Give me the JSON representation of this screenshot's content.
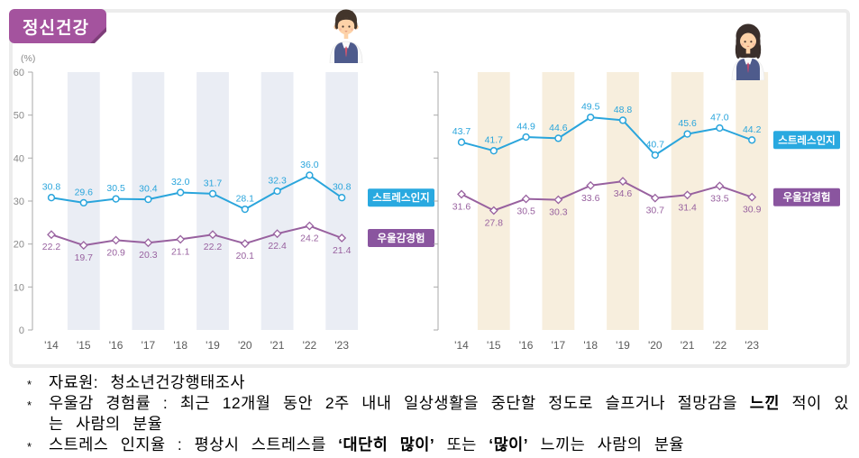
{
  "page": {
    "title_badge": "정신건강"
  },
  "chart_data": [
    {
      "type": "line",
      "group_icon": "boy-student-icon",
      "x": [
        "'14",
        "'15",
        "'16",
        "'17",
        "'18",
        "'19",
        "'20",
        "'21",
        "'22",
        "'23"
      ],
      "ylim": [
        0,
        60
      ],
      "yticks": [
        0,
        10,
        20,
        30,
        40,
        50,
        60
      ],
      "show_ytick_labels": true,
      "unit_label": "(%)",
      "grid": "alternating-year-stripes",
      "stripe_color": "#eaedf4",
      "legend_position": "right-of-last-point",
      "series": [
        {
          "name": "스트레스인지",
          "color": "#2aa5dc",
          "legend_bg": "#29a9e0",
          "marker": "circle",
          "values": [
            30.8,
            29.6,
            30.5,
            30.4,
            32.0,
            31.7,
            28.1,
            32.3,
            36.0,
            30.8
          ],
          "labels": [
            "30.8",
            "29.6",
            "30.5",
            "30.4",
            "32.0",
            "31.7",
            "28.1",
            "32.3",
            "36.0",
            "30.8"
          ]
        },
        {
          "name": "우울감경험",
          "color": "#98619f",
          "legend_bg": "#8a559f",
          "marker": "diamond",
          "values": [
            22.2,
            19.7,
            20.9,
            20.3,
            21.1,
            22.2,
            20.1,
            22.4,
            24.2,
            21.4
          ],
          "labels": [
            "22.2",
            "19.7",
            "20.9",
            "20.3",
            "21.1",
            "22.2",
            "20.1",
            "22.4",
            "24.2",
            "21.4"
          ]
        }
      ]
    },
    {
      "type": "line",
      "group_icon": "girl-student-icon",
      "x": [
        "'14",
        "'15",
        "'16",
        "'17",
        "'18",
        "'19",
        "'20",
        "'21",
        "'22",
        "'23"
      ],
      "ylim": [
        0,
        60
      ],
      "yticks": [
        0,
        10,
        20,
        30,
        40,
        50,
        60
      ],
      "show_ytick_labels": false,
      "unit_label": "",
      "grid": "alternating-year-stripes",
      "stripe_color": "#f7eedd",
      "legend_position": "right-of-last-point",
      "series": [
        {
          "name": "스트레스인지",
          "color": "#2aa5dc",
          "legend_bg": "#29a9e0",
          "marker": "circle",
          "values": [
            43.7,
            41.7,
            44.9,
            44.6,
            49.5,
            48.8,
            40.7,
            45.6,
            47.0,
            44.2
          ],
          "labels": [
            "43.7",
            "41.7",
            "44.9",
            "44.6",
            "49.5",
            "48.8",
            "40.7",
            "45.6",
            "47.0",
            "44.2"
          ]
        },
        {
          "name": "우울감경험",
          "color": "#98619f",
          "legend_bg": "#8a559f",
          "marker": "diamond",
          "values": [
            31.6,
            27.8,
            30.5,
            30.3,
            33.6,
            34.6,
            30.7,
            31.4,
            33.5,
            30.9
          ],
          "labels": [
            "31.6",
            "27.8",
            "30.5",
            "30.3",
            "33.6",
            "34.6",
            "30.7",
            "31.4",
            "33.5",
            "30.9"
          ]
        }
      ]
    }
  ],
  "footnotes": [
    {
      "marker": "*",
      "segments": [
        {
          "text": "자료원: 청소년건강행태조사",
          "bold": false
        }
      ]
    },
    {
      "marker": "*",
      "segments": [
        {
          "text": "우울감 경험률 : 최근 12개월 동안 2주 내내 일상생활을 중단할 정도로 슬프거나 절망감을 ",
          "bold": false
        },
        {
          "text": "느낀",
          "bold": true
        },
        {
          "text": " 적이 있는 사람의 분율",
          "bold": false
        }
      ]
    },
    {
      "marker": "*",
      "segments": [
        {
          "text": "스트레스 인지율 : 평상시 스트레스를 ",
          "bold": false
        },
        {
          "text": "‘대단히 많이’",
          "bold": true
        },
        {
          "text": " 또는 ",
          "bold": false
        },
        {
          "text": "‘많이’",
          "bold": true
        },
        {
          "text": " 느끼는 사람의 분율",
          "bold": false
        }
      ]
    }
  ]
}
